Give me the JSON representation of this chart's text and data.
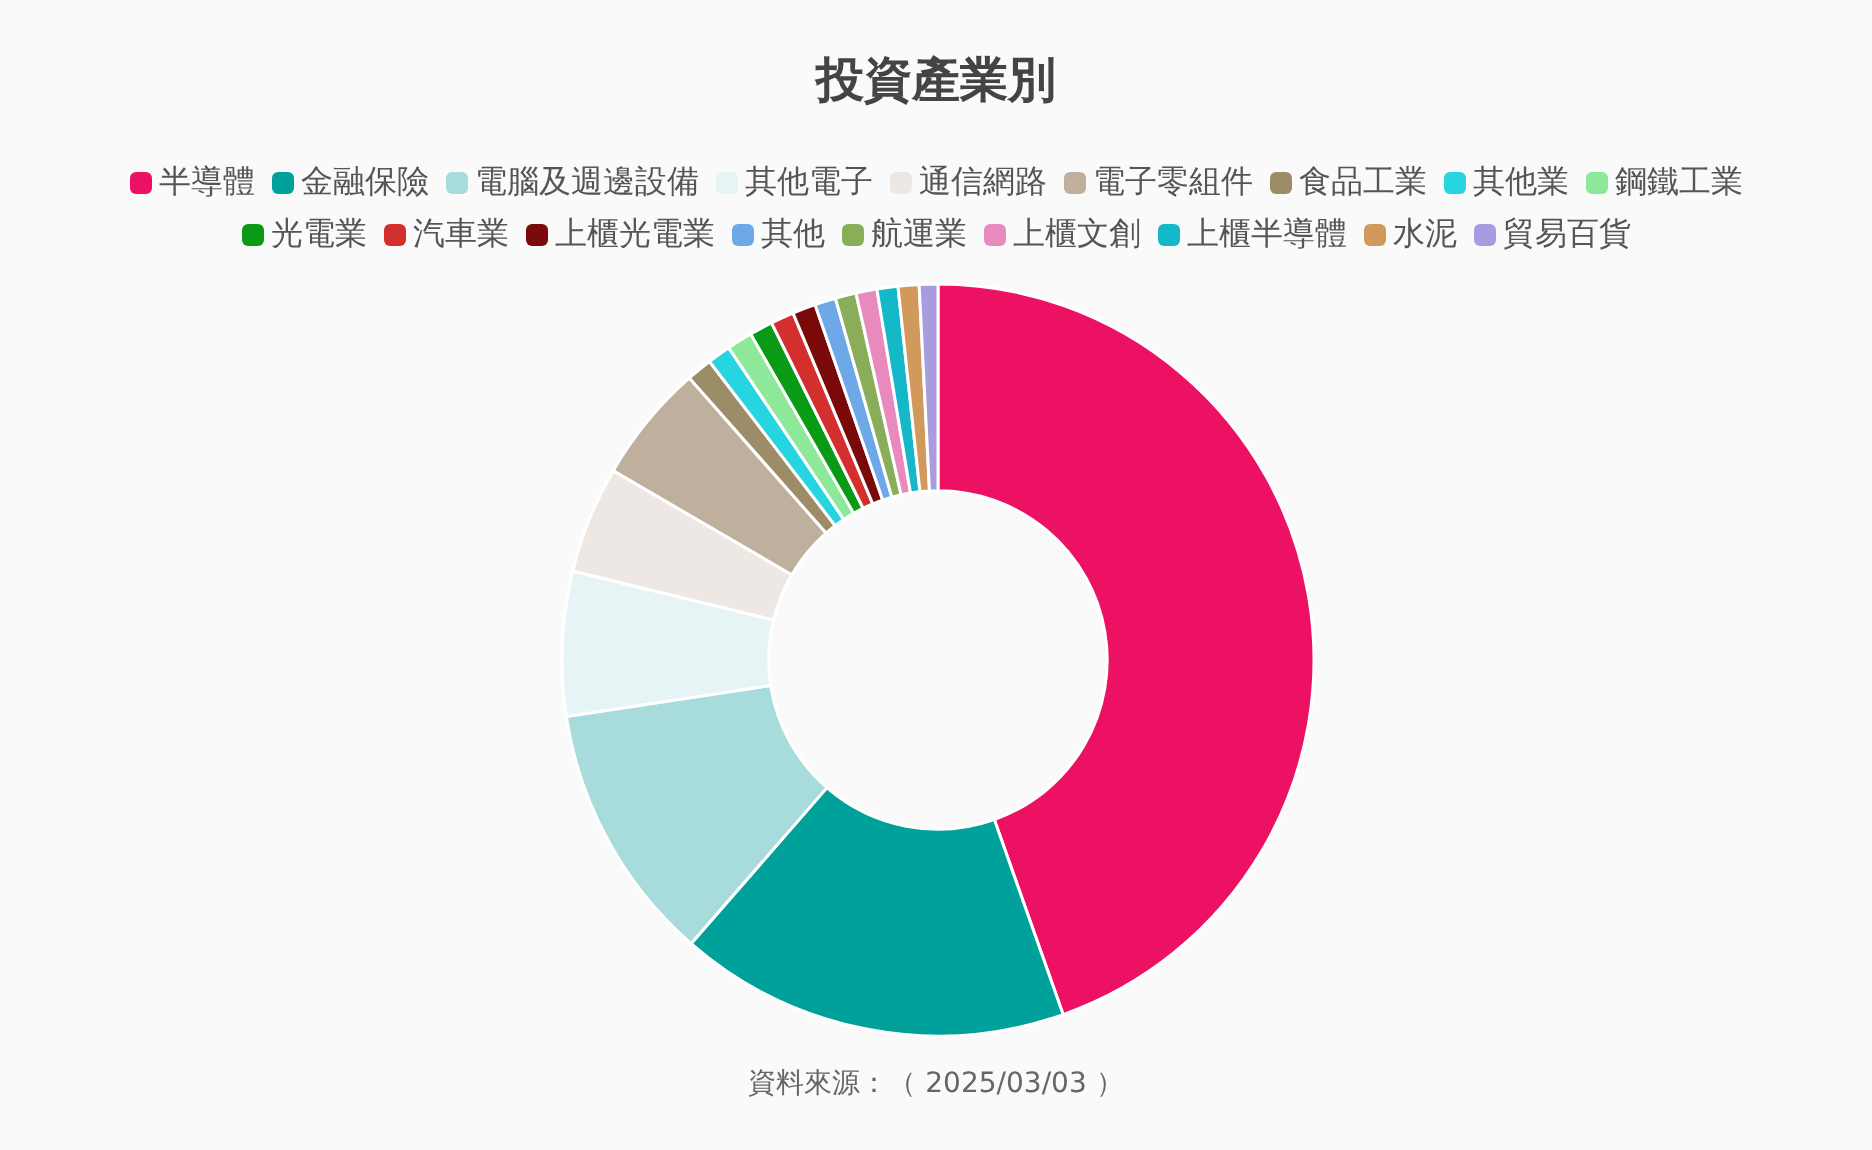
{
  "chart_data": {
    "type": "donut",
    "title": "投資產業別",
    "categories": [
      "半導體",
      "金融保險",
      "電腦及週邊設備",
      "其他電子",
      "通信網路",
      "電子零組件",
      "食品工業",
      "其他業",
      "鋼鐵工業",
      "光電業",
      "汽車業",
      "上櫃光電業",
      "其他",
      "航運業",
      "上櫃文創",
      "上櫃半導體",
      "水泥",
      "貿易百貨"
    ],
    "values": [
      44.6,
      16.8,
      11.2,
      6.2,
      4.6,
      5.1,
      1.1,
      1.0,
      1.1,
      1.0,
      1.0,
      1.0,
      0.9,
      0.9,
      0.9,
      0.9,
      0.9,
      0.8
    ],
    "colors": [
      "#ec1163",
      "#00a19a",
      "#a8dcdc",
      "#e6f4f5",
      "#ede8e3",
      "#bfb09e",
      "#9c8c68",
      "#26d5e0",
      "#8ee89a",
      "#0a9a16",
      "#d32f2f",
      "#7a0a0a",
      "#6fa8e6",
      "#8aad5a",
      "#e88abe",
      "#14b8c8",
      "#d19a5c",
      "#a99be0"
    ],
    "legend": "top",
    "annotations": [
      "資料來源：（ 2025/03/03 ）"
    ]
  }
}
